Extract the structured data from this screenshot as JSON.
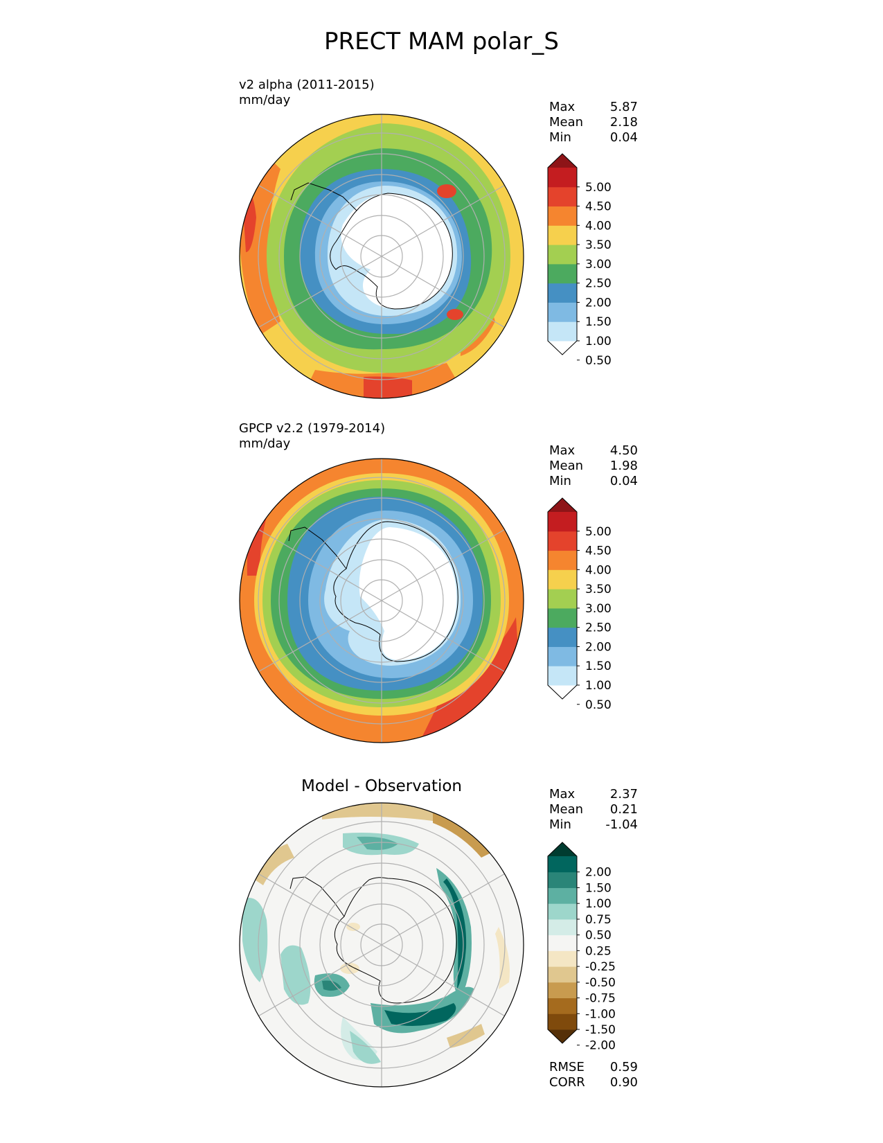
{
  "title": "PRECT MAM polar_S",
  "panels": [
    {
      "id": "test",
      "title_lines": [
        "v2 alpha (2011-2015)",
        "mm/day"
      ],
      "stats": [
        {
          "label": "Max",
          "value": "5.87"
        },
        {
          "label": "Mean",
          "value": "2.18"
        },
        {
          "label": "Min",
          "value": "0.04"
        }
      ],
      "colorbar": {
        "colors": [
          "#ffffff",
          "#c5e6f7",
          "#7fbae3",
          "#4590c3",
          "#4caa5f",
          "#a3cf51",
          "#f6d04d",
          "#f5852f",
          "#e4432c",
          "#c41d20",
          "#8e1417"
        ],
        "ticks": [
          "5.00",
          "4.50",
          "4.00",
          "3.50",
          "3.00",
          "2.50",
          "2.00",
          "1.50",
          "1.00",
          "0.50"
        ]
      }
    },
    {
      "id": "reference",
      "title_lines": [
        "GPCP v2.2 (1979-2014)",
        "mm/day"
      ],
      "stats": [
        {
          "label": "Max",
          "value": "4.50"
        },
        {
          "label": "Mean",
          "value": "1.98"
        },
        {
          "label": "Min",
          "value": "0.04"
        }
      ],
      "colorbar": {
        "colors": [
          "#ffffff",
          "#c5e6f7",
          "#7fbae3",
          "#4590c3",
          "#4caa5f",
          "#a3cf51",
          "#f6d04d",
          "#f5852f",
          "#e4432c",
          "#c41d20",
          "#8e1417"
        ],
        "ticks": [
          "5.00",
          "4.50",
          "4.00",
          "3.50",
          "3.00",
          "2.50",
          "2.00",
          "1.50",
          "1.00",
          "0.50"
        ]
      }
    },
    {
      "id": "difference",
      "title": "Model - Observation",
      "stats": [
        {
          "label": "Max",
          "value": "2.37"
        },
        {
          "label": "Mean",
          "value": "0.21"
        },
        {
          "label": "Min",
          "value": "-1.04"
        }
      ],
      "colorbar": {
        "colors": [
          "#553008",
          "#7f4a0c",
          "#a56b1e",
          "#c89b4f",
          "#e0c78f",
          "#f4e6c4",
          "#f5f5f3",
          "#d4ece7",
          "#9dd6cb",
          "#5db0a2",
          "#2a8578",
          "#01665e",
          "#003c30"
        ],
        "ticks": [
          "2.00",
          "1.50",
          "1.00",
          "0.75",
          "0.50",
          "0.25",
          "-0.25",
          "-0.50",
          "-0.75",
          "-1.00",
          "-1.50",
          "-2.00"
        ]
      },
      "metrics": [
        {
          "label": "RMSE",
          "value": "0.59"
        },
        {
          "label": "CORR",
          "value": "0.90"
        }
      ]
    }
  ]
}
